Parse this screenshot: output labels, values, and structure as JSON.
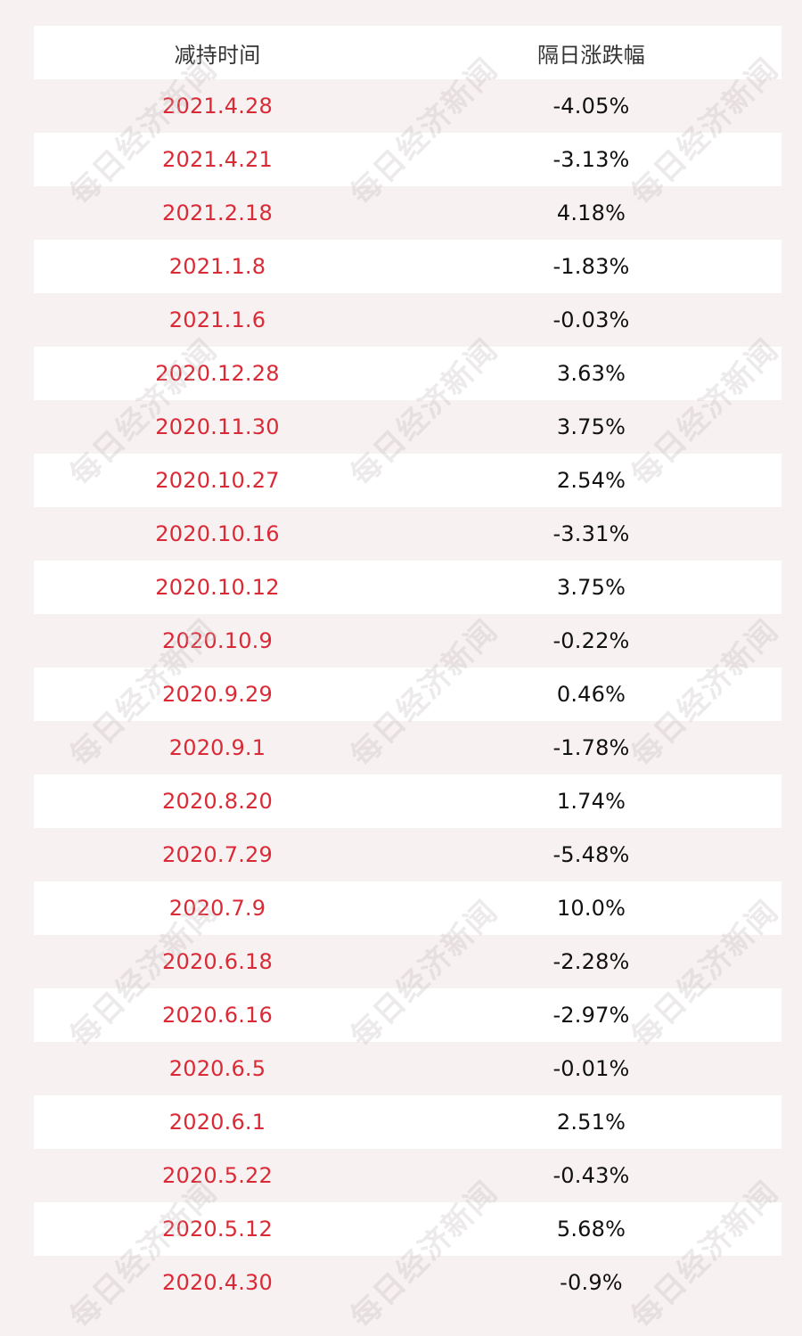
{
  "table": {
    "headers": [
      "减持时间",
      "隔日涨跌幅"
    ],
    "rows": [
      {
        "date": "2021.4.28",
        "change": "-4.05%"
      },
      {
        "date": "2021.4.21",
        "change": "-3.13%"
      },
      {
        "date": "2021.2.18",
        "change": "4.18%"
      },
      {
        "date": "2021.1.8",
        "change": "-1.83%"
      },
      {
        "date": "2021.1.6",
        "change": "-0.03%"
      },
      {
        "date": "2020.12.28",
        "change": "3.63%"
      },
      {
        "date": "2020.11.30",
        "change": "3.75%"
      },
      {
        "date": "2020.10.27",
        "change": "2.54%"
      },
      {
        "date": "2020.10.16",
        "change": "-3.31%"
      },
      {
        "date": "2020.10.12",
        "change": "3.75%"
      },
      {
        "date": "2020.10.9",
        "change": "-0.22%"
      },
      {
        "date": "2020.9.29",
        "change": "0.46%"
      },
      {
        "date": "2020.9.1",
        "change": "-1.78%"
      },
      {
        "date": "2020.8.20",
        "change": "1.74%"
      },
      {
        "date": "2020.7.29",
        "change": "-5.48%"
      },
      {
        "date": "2020.7.9",
        "change": "10.0%"
      },
      {
        "date": "2020.6.18",
        "change": "-2.28%"
      },
      {
        "date": "2020.6.16",
        "change": "-2.97%"
      },
      {
        "date": "2020.6.5",
        "change": "-0.01%"
      },
      {
        "date": "2020.6.1",
        "change": "2.51%"
      },
      {
        "date": "2020.5.22",
        "change": "-0.43%"
      },
      {
        "date": "2020.5.12",
        "change": "5.68%"
      },
      {
        "date": "2020.4.30",
        "change": "-0.9%"
      }
    ]
  },
  "watermark": {
    "text": "每日经济新闻"
  },
  "colors": {
    "date_text": "#d92a35",
    "value_text": "#111111",
    "header_text": "#333333",
    "row_white": "#ffffff",
    "row_tint": "#f7f1f2"
  }
}
